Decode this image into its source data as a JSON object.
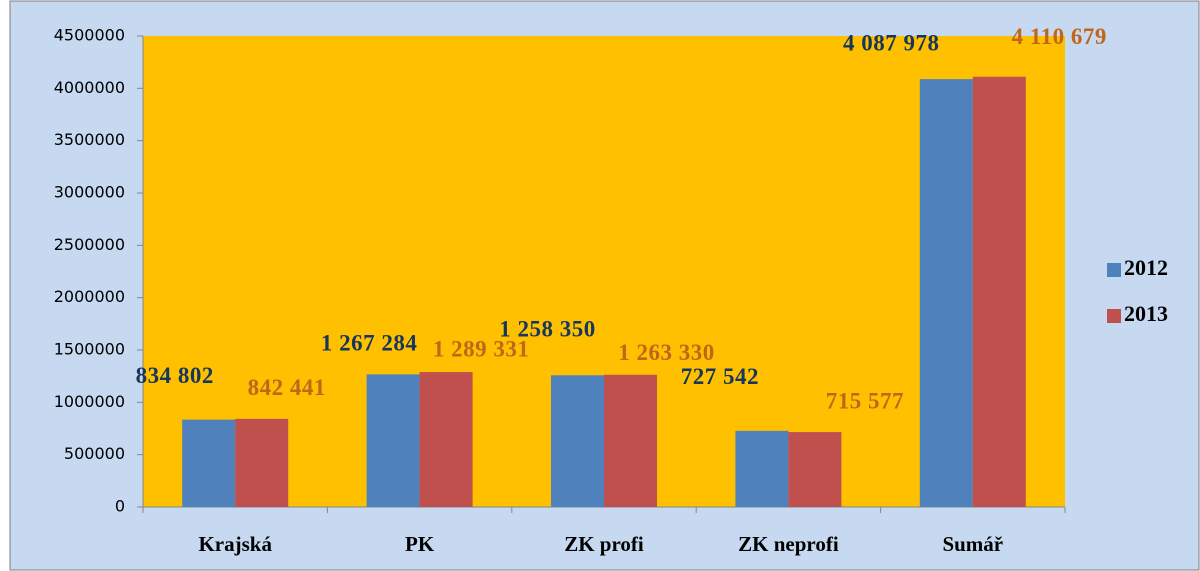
{
  "chart_data": {
    "type": "bar",
    "categories": [
      "Krajská",
      "PK",
      "ZK profi",
      "ZK neprofi",
      "Sumář"
    ],
    "series": [
      {
        "name": "2012",
        "color": "#4f81bd",
        "label_color": "#17365d",
        "values": [
          834802,
          1267284,
          1258350,
          727542,
          4087978
        ],
        "value_labels": [
          "834 802",
          "1 267 284",
          "1 258 350",
          "727 542",
          "4 087 978"
        ]
      },
      {
        "name": "2013",
        "color": "#c0504d",
        "label_color": "#c0661a",
        "values": [
          842441,
          1289331,
          1263330,
          715577,
          4110679
        ],
        "value_labels": [
          "842 441",
          "1 289 331",
          "1 263 330",
          "715 577",
          "4 110 679"
        ]
      }
    ],
    "ylim": [
      0,
      4500000
    ],
    "yticks": [
      0,
      500000,
      1000000,
      1500000,
      2000000,
      2500000,
      3000000,
      3500000,
      4000000,
      4500000
    ],
    "legend": "right"
  }
}
